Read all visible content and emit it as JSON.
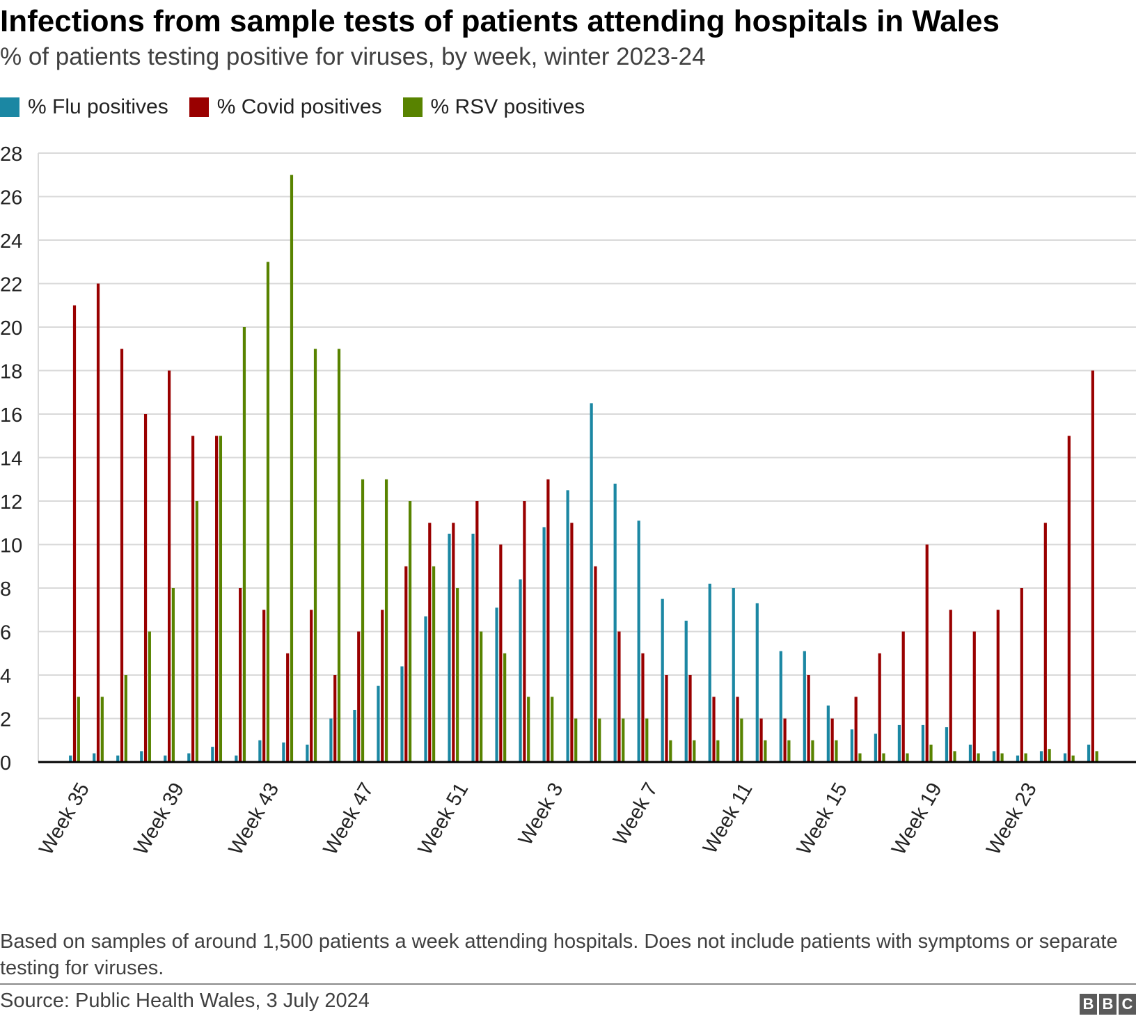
{
  "title": "Infections from sample tests of patients attending hospitals in Wales",
  "subtitle": "% of patients testing positive for viruses, by week, winter 2023-24",
  "note": "Based on samples of around 1,500 patients a week attending hospitals. Does not include patients with symptoms or separate testing for viruses.",
  "source": "Source: Public Health Wales, 3 July 2024",
  "logo": [
    "B",
    "B",
    "C"
  ],
  "colors": {
    "flu": "#1b87a3",
    "covid": "#990000",
    "rsv": "#588300",
    "grid": "#d9d9d9",
    "axis": "#000000"
  },
  "legend": [
    {
      "label": "% Flu positives",
      "series": "flu"
    },
    {
      "label": "% Covid positives",
      "series": "covid"
    },
    {
      "label": "% RSV positives",
      "series": "rsv"
    }
  ],
  "chart_data": {
    "type": "bar",
    "title": "Infections from sample tests of patients attending hospitals in Wales",
    "xlabel": "",
    "ylabel": "",
    "ylim": [
      0,
      28
    ],
    "yticks": [
      0,
      2,
      4,
      6,
      8,
      10,
      12,
      14,
      16,
      18,
      20,
      22,
      24,
      26,
      28
    ],
    "grid": true,
    "legend_position": "top-left",
    "categories": [
      "Week 35",
      "Week 36",
      "Week 37",
      "Week 38",
      "Week 39",
      "Week 40",
      "Week 41",
      "Week 42",
      "Week 43",
      "Week 44",
      "Week 45",
      "Week 46",
      "Week 47",
      "Week 48",
      "Week 49",
      "Week 50",
      "Week 51",
      "Week 52",
      "Week 1",
      "Week 2",
      "Week 3",
      "Week 4",
      "Week 5",
      "Week 6",
      "Week 7",
      "Week 8",
      "Week 9",
      "Week 10",
      "Week 11",
      "Week 12",
      "Week 13",
      "Week 14",
      "Week 15",
      "Week 16",
      "Week 17",
      "Week 18",
      "Week 19",
      "Week 20",
      "Week 21",
      "Week 22",
      "Week 23",
      "Week 24",
      "Week 25",
      "Week 26"
    ],
    "tick_labels": [
      "Week 35",
      "Week 39",
      "Week 43",
      "Week 47",
      "Week 51",
      "Week 3",
      "Week 7",
      "Week 11",
      "Week 15",
      "Week 19",
      "Week 23"
    ],
    "series": [
      {
        "name": "% Flu positives",
        "key": "flu",
        "values": [
          0.3,
          0.4,
          0.3,
          0.5,
          0.3,
          0.4,
          0.7,
          0.3,
          1.0,
          0.9,
          0.8,
          2.0,
          2.4,
          3.5,
          4.4,
          6.7,
          10.5,
          10.5,
          7.1,
          8.4,
          10.8,
          12.5,
          16.5,
          12.8,
          11.1,
          7.5,
          6.5,
          8.2,
          8.0,
          7.3,
          5.1,
          5.1,
          2.6,
          1.5,
          1.3,
          1.7,
          1.7,
          1.6,
          0.8,
          0.5,
          0.3,
          0.5,
          0.4,
          0.8
        ]
      },
      {
        "name": "% Covid positives",
        "key": "covid",
        "values": [
          21,
          22,
          19,
          16,
          18,
          15,
          15,
          8,
          7,
          5,
          7,
          4,
          6,
          7,
          9,
          11,
          11,
          12,
          10,
          12,
          13,
          11,
          9,
          6,
          5,
          4,
          4,
          3,
          3,
          2,
          2,
          4,
          2,
          3,
          5,
          6,
          10,
          7,
          6,
          7,
          8,
          11,
          15,
          18
        ]
      },
      {
        "name": "% RSV positives",
        "key": "rsv",
        "values": [
          3,
          3,
          4,
          6,
          8,
          12,
          15,
          20,
          23,
          27,
          19,
          19,
          13,
          13,
          12,
          9,
          8,
          6,
          5,
          3,
          3,
          2,
          2,
          2,
          2,
          1,
          1,
          1,
          2,
          1,
          1,
          1,
          1,
          0.4,
          0.4,
          0.4,
          0.8,
          0.5,
          0.4,
          0.4,
          0.4,
          0.6,
          0.3,
          0.5
        ]
      }
    ]
  }
}
